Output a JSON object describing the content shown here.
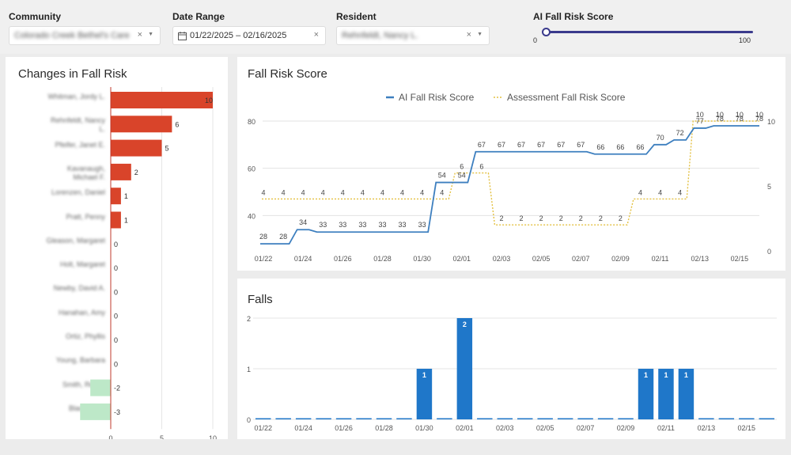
{
  "filters": {
    "community": {
      "label": "Community",
      "value": "Colorado Creek Bethel's Care"
    },
    "date_range": {
      "label": "Date Range",
      "value": "01/22/2025 – 02/16/2025"
    },
    "resident": {
      "label": "Resident",
      "value": "Rehnfeldt, Nancy L."
    },
    "score": {
      "label": "AI Fall Risk Score",
      "min": "0",
      "max": "100",
      "low": 0,
      "high": 100
    }
  },
  "panels": {
    "changes_title": "Changes in Fall Risk",
    "score_title": "Fall Risk Score",
    "falls_title": "Falls"
  },
  "colors": {
    "ai_line": "#3d7fbf",
    "assessment_line": "#e3c040",
    "increase_bar": "#d9442a",
    "decrease_bar": "#bde8c8",
    "falls_bar": "#1f77c9"
  },
  "chart_data": [
    {
      "type": "bar",
      "orientation": "horizontal",
      "title": "Changes in Fall Risk",
      "categories": [
        "Whitman, Jordy L.",
        "Rehnfeldt, Nancy L.",
        "Pfeifer, Janet E.",
        "Kavanaugh, Michael F.",
        "Lorenzen, Daniel",
        "Pratt, Penny",
        "Gleason, Margaret",
        "Holt, Margaret",
        "Newby, David A.",
        "Hanahan, Amy",
        "Ortiz, Phyllis",
        "Young, Barbara",
        "Smith, Renita",
        "Black, Sara"
      ],
      "values": [
        10,
        6,
        5,
        2,
        1,
        1,
        0,
        0,
        0,
        0,
        0,
        0,
        -2,
        -3
      ],
      "xlim": [
        -3,
        10
      ],
      "xticks": [
        "0",
        "5",
        "10"
      ]
    },
    {
      "type": "line",
      "title": "Fall Risk Score",
      "x": [
        "01/22",
        "01/23",
        "01/24",
        "01/25",
        "01/26",
        "01/27",
        "01/28",
        "01/29",
        "01/30",
        "01/31",
        "02/01",
        "02/02",
        "02/03",
        "02/04",
        "02/05",
        "02/06",
        "02/07",
        "02/08",
        "02/09",
        "02/10",
        "02/11",
        "02/12",
        "02/13",
        "02/14",
        "02/15",
        "02/16"
      ],
      "xticks": [
        "01/22",
        "01/24",
        "01/26",
        "01/28",
        "01/30",
        "02/01",
        "02/03",
        "02/05",
        "02/07",
        "02/09",
        "02/11",
        "02/13",
        "02/15"
      ],
      "series": [
        {
          "name": "AI Fall Risk Score",
          "axis": "left",
          "values": [
            28,
            28,
            34,
            33,
            33,
            33,
            33,
            33,
            33,
            54,
            54,
            67,
            67,
            67,
            67,
            67,
            67,
            66,
            66,
            66,
            70,
            72,
            77,
            78,
            78,
            78
          ]
        },
        {
          "name": "Assessment Fall Risk Score",
          "axis": "right",
          "values": [
            4,
            4,
            4,
            4,
            4,
            4,
            4,
            4,
            4,
            4,
            6,
            6,
            2,
            2,
            2,
            2,
            2,
            2,
            2,
            4,
            4,
            4,
            10,
            10,
            10,
            10
          ]
        }
      ],
      "ylim_left": [
        20,
        80
      ],
      "yticks_left": [
        "40",
        "60",
        "80"
      ],
      "ylim_right": [
        0,
        10
      ],
      "yticks_right": [
        "0",
        "5",
        "10"
      ],
      "legend": "top-center"
    },
    {
      "type": "bar",
      "title": "Falls",
      "categories": [
        "01/22",
        "01/23",
        "01/24",
        "01/25",
        "01/26",
        "01/27",
        "01/28",
        "01/29",
        "01/30",
        "01/31",
        "02/01",
        "02/02",
        "02/03",
        "02/04",
        "02/05",
        "02/06",
        "02/07",
        "02/08",
        "02/09",
        "02/10",
        "02/11",
        "02/12",
        "02/13",
        "02/14",
        "02/15",
        "02/16"
      ],
      "values": [
        0,
        0,
        0,
        0,
        0,
        0,
        0,
        0,
        1,
        0,
        2,
        0,
        0,
        0,
        0,
        0,
        0,
        0,
        0,
        1,
        1,
        1,
        0,
        0,
        0,
        0
      ],
      "xticks": [
        "01/22",
        "01/24",
        "01/26",
        "01/28",
        "01/30",
        "02/01",
        "02/03",
        "02/05",
        "02/07",
        "02/09",
        "02/11",
        "02/13",
        "02/15"
      ],
      "ylim": [
        0,
        2
      ],
      "yticks": [
        "0",
        "1",
        "2"
      ]
    }
  ]
}
